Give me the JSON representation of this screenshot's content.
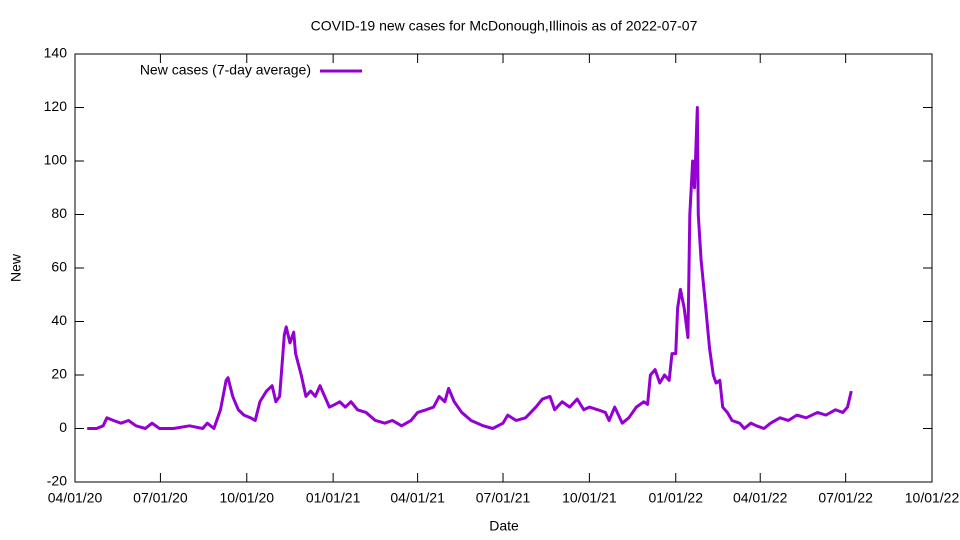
{
  "chart_data": {
    "type": "line",
    "title": "COVID-19 new cases for McDonough,Illinois as of 2022-07-07",
    "x_label": "Date",
    "y_label": "New",
    "x": [
      "2020-04-14",
      "2020-04-24",
      "2020-05-01",
      "2020-05-05",
      "2020-05-12",
      "2020-05-20",
      "2020-05-28",
      "2020-06-05",
      "2020-06-15",
      "2020-06-22",
      "2020-06-30",
      "2020-07-15",
      "2020-08-01",
      "2020-08-15",
      "2020-08-20",
      "2020-08-27",
      "2020-09-03",
      "2020-09-09",
      "2020-09-11",
      "2020-09-16",
      "2020-09-22",
      "2020-09-28",
      "2020-10-05",
      "2020-10-10",
      "2020-10-15",
      "2020-10-22",
      "2020-10-28",
      "2020-11-01",
      "2020-11-05",
      "2020-11-10",
      "2020-11-12",
      "2020-11-16",
      "2020-11-20",
      "2020-11-22",
      "2020-11-28",
      "2020-12-03",
      "2020-12-08",
      "2020-12-13",
      "2020-12-18",
      "2020-12-23",
      "2020-12-28",
      "2021-01-03",
      "2021-01-08",
      "2021-01-14",
      "2021-01-20",
      "2021-01-27",
      "2021-02-05",
      "2021-02-15",
      "2021-02-25",
      "2021-03-05",
      "2021-03-15",
      "2021-03-25",
      "2021-04-01",
      "2021-04-10",
      "2021-04-18",
      "2021-04-24",
      "2021-04-30",
      "2021-05-04",
      "2021-05-10",
      "2021-05-18",
      "2021-05-28",
      "2021-06-10",
      "2021-06-20",
      "2021-07-01",
      "2021-07-06",
      "2021-07-15",
      "2021-07-25",
      "2021-08-05",
      "2021-08-12",
      "2021-08-20",
      "2021-08-25",
      "2021-09-02",
      "2021-09-10",
      "2021-09-18",
      "2021-09-25",
      "2021-10-01",
      "2021-10-10",
      "2021-10-18",
      "2021-10-22",
      "2021-10-28",
      "2021-11-05",
      "2021-11-12",
      "2021-11-20",
      "2021-11-28",
      "2021-12-02",
      "2021-12-05",
      "2021-12-10",
      "2021-12-15",
      "2021-12-20",
      "2021-12-25",
      "2021-12-28",
      "2022-01-01",
      "2022-01-03",
      "2022-01-06",
      "2022-01-10",
      "2022-01-14",
      "2022-01-16",
      "2022-01-19",
      "2022-01-21",
      "2022-01-24",
      "2022-01-25",
      "2022-01-28",
      "2022-02-02",
      "2022-02-06",
      "2022-02-10",
      "2022-02-13",
      "2022-02-17",
      "2022-02-20",
      "2022-02-25",
      "2022-03-02",
      "2022-03-10",
      "2022-03-15",
      "2022-03-22",
      "2022-03-28",
      "2022-04-05",
      "2022-04-12",
      "2022-04-22",
      "2022-05-01",
      "2022-05-10",
      "2022-05-20",
      "2022-06-01",
      "2022-06-10",
      "2022-06-20",
      "2022-06-28",
      "2022-07-03",
      "2022-07-07"
    ],
    "series": [
      {
        "name": "New cases (7-day average)",
        "color": "#9400d3",
        "values": [
          0,
          0,
          1,
          4,
          3,
          2,
          3,
          1,
          0,
          2,
          0,
          0,
          1,
          0,
          2,
          0,
          7,
          18,
          19,
          12,
          7,
          5,
          4,
          3,
          10,
          14,
          16,
          10,
          12,
          35,
          38,
          32,
          36,
          28,
          20,
          12,
          14,
          12,
          16,
          12,
          8,
          9,
          10,
          8,
          10,
          7,
          6,
          3,
          2,
          3,
          1,
          3,
          6,
          7,
          8,
          12,
          10,
          15,
          10,
          6,
          3,
          1,
          0,
          2,
          5,
          3,
          4,
          8,
          11,
          12,
          7,
          10,
          8,
          11,
          7,
          8,
          7,
          6,
          3,
          8,
          2,
          4,
          8,
          10,
          9,
          20,
          22,
          17,
          20,
          18,
          28,
          28,
          45,
          52,
          45,
          34,
          80,
          100,
          90,
          120,
          80,
          63,
          45,
          30,
          20,
          17,
          18,
          8,
          6,
          3,
          2,
          0,
          2,
          1,
          0,
          2,
          4,
          3,
          5,
          4,
          6,
          5,
          7,
          6,
          8,
          14
        ]
      }
    ],
    "xlim": [
      "2020-04-01",
      "2022-10-01"
    ],
    "xticks": [
      {
        "value": "2020-04-01",
        "label": "04/01/20"
      },
      {
        "value": "2020-07-01",
        "label": "07/01/20"
      },
      {
        "value": "2020-10-01",
        "label": "10/01/20"
      },
      {
        "value": "2021-01-01",
        "label": "01/01/21"
      },
      {
        "value": "2021-04-01",
        "label": "04/01/21"
      },
      {
        "value": "2021-07-01",
        "label": "07/01/21"
      },
      {
        "value": "2021-10-01",
        "label": "10/01/21"
      },
      {
        "value": "2022-01-01",
        "label": "01/01/22"
      },
      {
        "value": "2022-04-01",
        "label": "04/01/22"
      },
      {
        "value": "2022-07-01",
        "label": "07/01/22"
      },
      {
        "value": "2022-10-01",
        "label": "10/01/22"
      }
    ],
    "ylim": [
      -20,
      140
    ],
    "yticks": [
      -20,
      0,
      20,
      40,
      60,
      80,
      100,
      120,
      140
    ],
    "legend": "top-left"
  }
}
